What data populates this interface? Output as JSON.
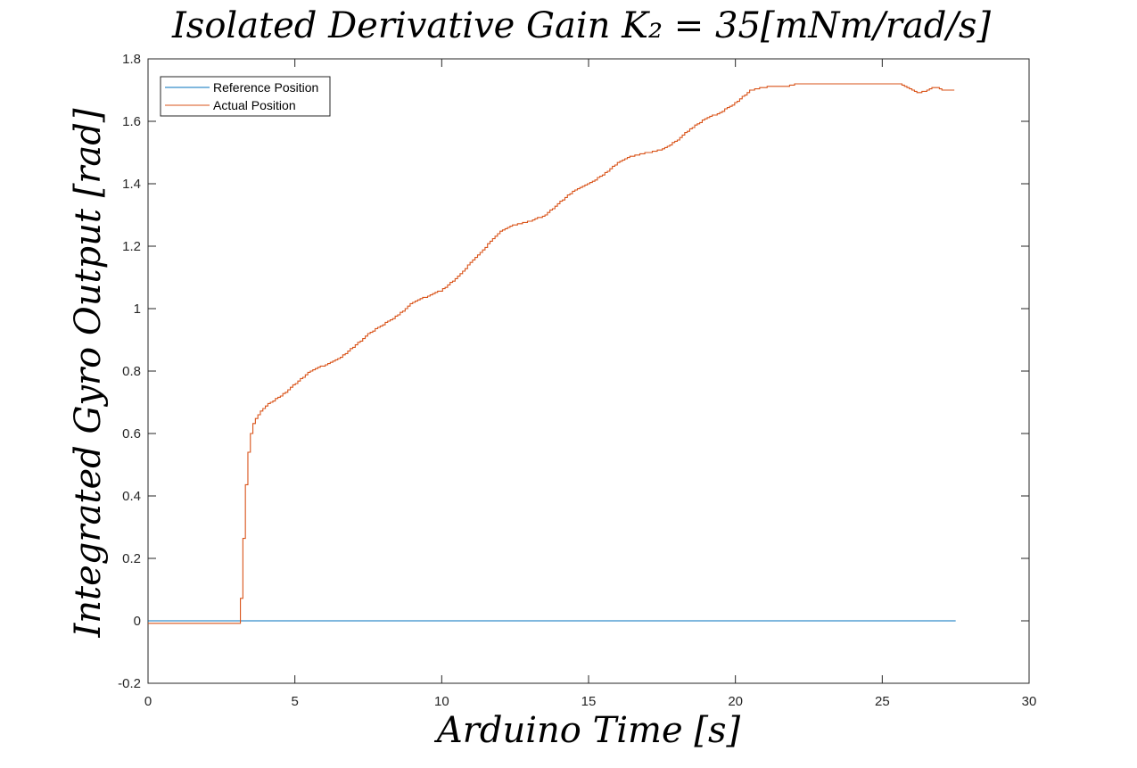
{
  "chart_data": {
    "type": "line",
    "title": "Isolated Derivative Gain K₂ = 35[mNm/rad/s]",
    "xlabel": "Arduino Time [s]",
    "ylabel": "Integrated Gyro Output [rad]",
    "xlim": [
      0,
      30
    ],
    "ylim": [
      -0.2,
      1.8
    ],
    "xticks": [
      0,
      5,
      10,
      15,
      20,
      25,
      30
    ],
    "yticks": [
      -0.2,
      0,
      0.2,
      0.4,
      0.6,
      0.8,
      1,
      1.2,
      1.4,
      1.6,
      1.8
    ],
    "grid": false,
    "legend_position": "top-left",
    "series": [
      {
        "name": "Reference Position",
        "color": "#0072BD",
        "x": [
          0,
          27.5
        ],
        "y": [
          0,
          0
        ]
      },
      {
        "name": "Actual Position",
        "color": "#D95319",
        "x": [
          0,
          3.1,
          3.15,
          3.2,
          3.3,
          3.4,
          3.5,
          3.6,
          3.8,
          4.0,
          4.5,
          5.0,
          5.5,
          6.0,
          6.5,
          7.0,
          7.5,
          8.0,
          8.5,
          9.0,
          9.5,
          10.0,
          10.5,
          11.0,
          11.5,
          12.0,
          12.5,
          13.0,
          13.5,
          14.0,
          14.5,
          15.0,
          15.5,
          16.0,
          16.5,
          17.0,
          17.5,
          18.0,
          18.5,
          19.0,
          19.5,
          20.0,
          20.5,
          21.0,
          21.7,
          22.0,
          25.6,
          25.8,
          26.0,
          26.2,
          26.5,
          26.8,
          27.0,
          27.5
        ],
        "y": [
          -0.01,
          -0.01,
          0.08,
          0.2,
          0.42,
          0.54,
          0.61,
          0.64,
          0.67,
          0.69,
          0.72,
          0.76,
          0.8,
          0.82,
          0.84,
          0.88,
          0.92,
          0.95,
          0.98,
          1.02,
          1.04,
          1.06,
          1.1,
          1.15,
          1.2,
          1.25,
          1.27,
          1.28,
          1.3,
          1.34,
          1.38,
          1.4,
          1.43,
          1.47,
          1.49,
          1.5,
          1.51,
          1.54,
          1.58,
          1.61,
          1.63,
          1.66,
          1.7,
          1.71,
          1.71,
          1.72,
          1.72,
          1.71,
          1.7,
          1.69,
          1.7,
          1.71,
          1.7,
          1.7
        ]
      }
    ]
  }
}
